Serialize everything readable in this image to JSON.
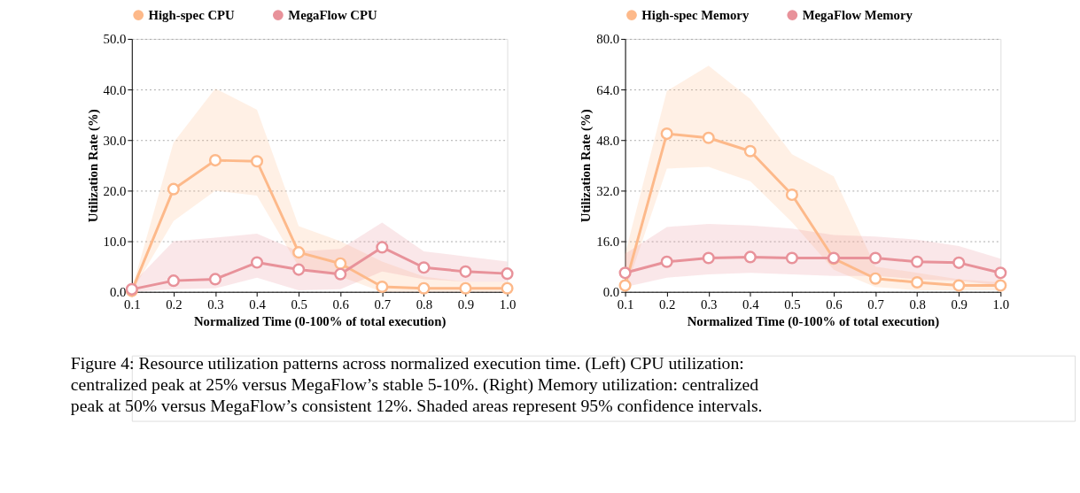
{
  "chart_data": [
    {
      "type": "line",
      "xlabel": "Normalized Time (0-100% of total execution)",
      "ylabel": "Utilization Rate (%)",
      "x": [
        0.1,
        0.2,
        0.3,
        0.4,
        0.5,
        0.6,
        0.7,
        0.8,
        0.9,
        1.0
      ],
      "xlim": [
        0.1,
        1.0
      ],
      "xticks": [
        0.1,
        0.2,
        0.3,
        0.4,
        0.5,
        0.6,
        0.7,
        0.8,
        0.9,
        {
          "value": 1.0,
          "label": "1.0"
        }
      ],
      "ylim": [
        0,
        50
      ],
      "yticks": [
        {
          "value": 0,
          "label": "0.0"
        },
        {
          "value": 10,
          "label": "10.0"
        },
        {
          "value": 20,
          "label": "20.0"
        },
        {
          "value": 30,
          "label": "30.0"
        },
        {
          "value": 40,
          "label": "40.0"
        },
        {
          "value": 50,
          "label": "50.0"
        }
      ],
      "grid": "y",
      "legend": "top",
      "marker": "circle",
      "line_style": "solid",
      "series": [
        {
          "name": "High-spec CPU",
          "color": "#fdb98a",
          "values": [
            0.2,
            20.3,
            26.0,
            25.8,
            7.8,
            5.6,
            1.0,
            0.7,
            0.7,
            0.7
          ],
          "lower": [
            0,
            14,
            20,
            19,
            5,
            3,
            0,
            0,
            0,
            0
          ],
          "upper": [
            0.5,
            29.5,
            40.2,
            36,
            13,
            10,
            6,
            3,
            2,
            2
          ]
        },
        {
          "name": "MegaFlow CPU",
          "color": "#e8929a",
          "values": [
            0.5,
            2.2,
            2.5,
            5.8,
            4.4,
            3.5,
            8.8,
            4.8,
            4.0,
            3.6
          ],
          "lower": [
            0,
            0.5,
            0.7,
            2.8,
            0.3,
            0.5,
            4,
            2.5,
            2,
            2
          ],
          "upper": [
            1.5,
            10,
            10.7,
            11.5,
            8,
            8.5,
            13.7,
            8,
            7,
            6
          ]
        }
      ],
      "annotations": [
        "Figure 4: Resource utilization patterns across normalized execution time. (Left) CPU utilization:\ncentralized peak at 25% versus MegaFlow’s stable 5-10%. (Right) Memory utilization: centralized\npeak at 50% versus MegaFlow’s consistent 12%. Shaded areas represent 95% confidence intervals."
      ]
    },
    {
      "type": "line",
      "xlabel": "Normalized Time (0-100% of total execution)",
      "ylabel": "Utilization Rate (%)",
      "x": [
        0.1,
        0.2,
        0.3,
        0.4,
        0.5,
        0.6,
        0.7,
        0.8,
        0.9,
        1.0
      ],
      "xlim": [
        0.1,
        1.0
      ],
      "xticks": [
        0.1,
        0.2,
        0.3,
        0.4,
        0.5,
        0.6,
        0.7,
        0.8,
        0.9,
        {
          "value": 1.0,
          "label": "1.0"
        }
      ],
      "ylim": [
        0,
        80
      ],
      "yticks": [
        {
          "value": 0,
          "label": "0.0"
        },
        {
          "value": 16,
          "label": "16.0"
        },
        {
          "value": 32,
          "label": "32.0"
        },
        {
          "value": 48,
          "label": "48.0"
        },
        {
          "value": 64,
          "label": "64.0"
        },
        {
          "value": 80,
          "label": "80.0"
        }
      ],
      "grid": "y",
      "legend": "top",
      "marker": "circle",
      "line_style": "solid",
      "series": [
        {
          "name": "High-spec Memory",
          "color": "#fdb98a",
          "values": [
            2,
            50,
            48.7,
            44.5,
            30.7,
            10.5,
            4.2,
            3,
            2,
            2
          ],
          "lower": [
            0,
            39,
            39.5,
            35,
            22,
            7,
            1.5,
            0.5,
            0.5,
            0.5
          ],
          "upper": [
            12,
            63.5,
            71.5,
            61,
            43.5,
            36.5,
            8,
            6,
            4,
            3
          ]
        },
        {
          "name": "MegaFlow Memory",
          "color": "#e8929a",
          "values": [
            6,
            9.5,
            10.7,
            11,
            10.7,
            10.7,
            10.7,
            9.5,
            9.2,
            6
          ],
          "lower": [
            1.5,
            4.5,
            5.5,
            6,
            5.5,
            5,
            5,
            4,
            3.5,
            2
          ],
          "upper": [
            12,
            20.5,
            21.5,
            21,
            20,
            18,
            17.5,
            16.5,
            14.5,
            10.5
          ]
        }
      ]
    }
  ]
}
